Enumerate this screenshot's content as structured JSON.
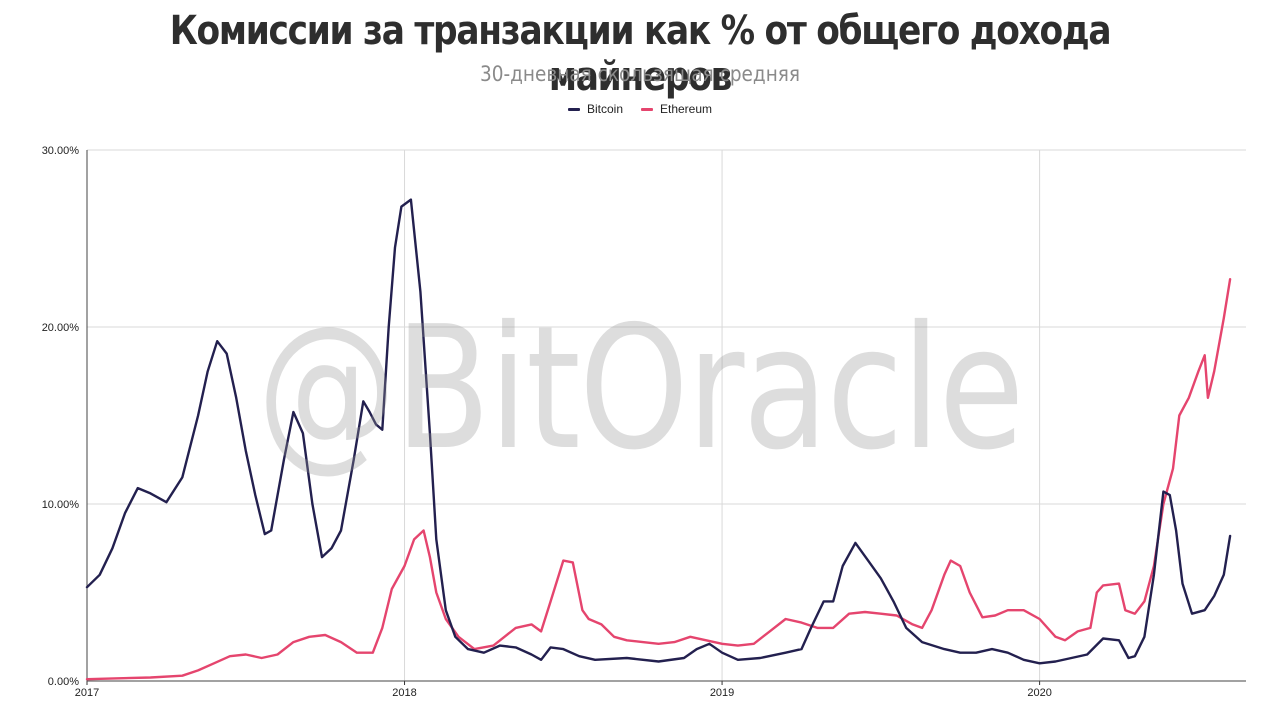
{
  "chart_data": {
    "type": "line",
    "title": "Комиссии за транзакции как % от общего дохода майнеров",
    "subtitle": "30-дневная скользящая средняя",
    "watermark": "@BitOracle",
    "xlabel": "",
    "ylabel": "",
    "x_ticks": [
      "2017",
      "2018",
      "2019",
      "2020"
    ],
    "y_ticks": [
      "0.00%",
      "10.00%",
      "20.00%",
      "30.00%"
    ],
    "xlim": [
      2017.0,
      2020.65
    ],
    "ylim": [
      0,
      30
    ],
    "grid": true,
    "legend_position": "top-center",
    "series": [
      {
        "name": "Bitcoin",
        "color": "#23204f",
        "points": [
          [
            2017.0,
            5.3
          ],
          [
            2017.04,
            6.0
          ],
          [
            2017.08,
            7.5
          ],
          [
            2017.12,
            9.5
          ],
          [
            2017.16,
            10.9
          ],
          [
            2017.2,
            10.6
          ],
          [
            2017.25,
            10.1
          ],
          [
            2017.3,
            11.5
          ],
          [
            2017.35,
            15.0
          ],
          [
            2017.38,
            17.5
          ],
          [
            2017.41,
            19.2
          ],
          [
            2017.44,
            18.5
          ],
          [
            2017.47,
            16.0
          ],
          [
            2017.5,
            13.0
          ],
          [
            2017.53,
            10.5
          ],
          [
            2017.56,
            8.3
          ],
          [
            2017.58,
            8.5
          ],
          [
            2017.62,
            12.5
          ],
          [
            2017.65,
            15.2
          ],
          [
            2017.68,
            14.0
          ],
          [
            2017.71,
            10.0
          ],
          [
            2017.74,
            7.0
          ],
          [
            2017.77,
            7.5
          ],
          [
            2017.8,
            8.5
          ],
          [
            2017.84,
            12.5
          ],
          [
            2017.87,
            15.8
          ],
          [
            2017.89,
            15.2
          ],
          [
            2017.91,
            14.5
          ],
          [
            2017.93,
            14.2
          ],
          [
            2017.95,
            20.0
          ],
          [
            2017.97,
            24.5
          ],
          [
            2017.99,
            26.8
          ],
          [
            2018.02,
            27.2
          ],
          [
            2018.05,
            22.0
          ],
          [
            2018.08,
            14.0
          ],
          [
            2018.1,
            8.0
          ],
          [
            2018.13,
            4.0
          ],
          [
            2018.16,
            2.5
          ],
          [
            2018.2,
            1.8
          ],
          [
            2018.25,
            1.6
          ],
          [
            2018.3,
            2.0
          ],
          [
            2018.35,
            1.9
          ],
          [
            2018.4,
            1.5
          ],
          [
            2018.43,
            1.2
          ],
          [
            2018.46,
            1.9
          ],
          [
            2018.5,
            1.8
          ],
          [
            2018.55,
            1.4
          ],
          [
            2018.6,
            1.2
          ],
          [
            2018.7,
            1.3
          ],
          [
            2018.8,
            1.1
          ],
          [
            2018.88,
            1.3
          ],
          [
            2018.92,
            1.8
          ],
          [
            2018.96,
            2.1
          ],
          [
            2019.0,
            1.6
          ],
          [
            2019.05,
            1.2
          ],
          [
            2019.12,
            1.3
          ],
          [
            2019.2,
            1.6
          ],
          [
            2019.25,
            1.8
          ],
          [
            2019.28,
            3.0
          ],
          [
            2019.32,
            4.5
          ],
          [
            2019.35,
            4.5
          ],
          [
            2019.38,
            6.5
          ],
          [
            2019.42,
            7.8
          ],
          [
            2019.46,
            6.8
          ],
          [
            2019.5,
            5.8
          ],
          [
            2019.54,
            4.5
          ],
          [
            2019.58,
            3.0
          ],
          [
            2019.63,
            2.2
          ],
          [
            2019.7,
            1.8
          ],
          [
            2019.75,
            1.6
          ],
          [
            2019.8,
            1.6
          ],
          [
            2019.85,
            1.8
          ],
          [
            2019.9,
            1.6
          ],
          [
            2019.95,
            1.2
          ],
          [
            2020.0,
            1.0
          ],
          [
            2020.05,
            1.1
          ],
          [
            2020.1,
            1.3
          ],
          [
            2020.15,
            1.5
          ],
          [
            2020.2,
            2.4
          ],
          [
            2020.25,
            2.3
          ],
          [
            2020.28,
            1.3
          ],
          [
            2020.3,
            1.4
          ],
          [
            2020.33,
            2.5
          ],
          [
            2020.36,
            6.0
          ],
          [
            2020.39,
            10.7
          ],
          [
            2020.41,
            10.5
          ],
          [
            2020.43,
            8.5
          ],
          [
            2020.45,
            5.5
          ],
          [
            2020.48,
            3.8
          ],
          [
            2020.52,
            4.0
          ],
          [
            2020.55,
            4.8
          ],
          [
            2020.58,
            6.0
          ],
          [
            2020.6,
            8.2
          ]
        ]
      },
      {
        "name": "Ethereum",
        "color": "#e5456e",
        "points": [
          [
            2017.0,
            0.1
          ],
          [
            2017.1,
            0.15
          ],
          [
            2017.2,
            0.2
          ],
          [
            2017.3,
            0.3
          ],
          [
            2017.35,
            0.6
          ],
          [
            2017.4,
            1.0
          ],
          [
            2017.45,
            1.4
          ],
          [
            2017.5,
            1.5
          ],
          [
            2017.55,
            1.3
          ],
          [
            2017.6,
            1.5
          ],
          [
            2017.65,
            2.2
          ],
          [
            2017.7,
            2.5
          ],
          [
            2017.75,
            2.6
          ],
          [
            2017.8,
            2.2
          ],
          [
            2017.85,
            1.6
          ],
          [
            2017.9,
            1.6
          ],
          [
            2017.93,
            3.0
          ],
          [
            2017.96,
            5.2
          ],
          [
            2018.0,
            6.5
          ],
          [
            2018.03,
            8.0
          ],
          [
            2018.06,
            8.5
          ],
          [
            2018.08,
            7.0
          ],
          [
            2018.1,
            5.0
          ],
          [
            2018.13,
            3.5
          ],
          [
            2018.17,
            2.5
          ],
          [
            2018.22,
            1.8
          ],
          [
            2018.28,
            2.0
          ],
          [
            2018.35,
            3.0
          ],
          [
            2018.4,
            3.2
          ],
          [
            2018.43,
            2.8
          ],
          [
            2018.46,
            4.5
          ],
          [
            2018.5,
            6.8
          ],
          [
            2018.53,
            6.7
          ],
          [
            2018.56,
            4.0
          ],
          [
            2018.58,
            3.5
          ],
          [
            2018.62,
            3.2
          ],
          [
            2018.66,
            2.5
          ],
          [
            2018.7,
            2.3
          ],
          [
            2018.75,
            2.2
          ],
          [
            2018.8,
            2.1
          ],
          [
            2018.85,
            2.2
          ],
          [
            2018.9,
            2.5
          ],
          [
            2018.95,
            2.3
          ],
          [
            2019.0,
            2.1
          ],
          [
            2019.05,
            2.0
          ],
          [
            2019.1,
            2.1
          ],
          [
            2019.15,
            2.8
          ],
          [
            2019.2,
            3.5
          ],
          [
            2019.25,
            3.3
          ],
          [
            2019.3,
            3.0
          ],
          [
            2019.35,
            3.0
          ],
          [
            2019.4,
            3.8
          ],
          [
            2019.45,
            3.9
          ],
          [
            2019.5,
            3.8
          ],
          [
            2019.55,
            3.7
          ],
          [
            2019.6,
            3.2
          ],
          [
            2019.63,
            3.0
          ],
          [
            2019.66,
            4.0
          ],
          [
            2019.7,
            6.0
          ],
          [
            2019.72,
            6.8
          ],
          [
            2019.75,
            6.5
          ],
          [
            2019.78,
            5.0
          ],
          [
            2019.82,
            3.6
          ],
          [
            2019.86,
            3.7
          ],
          [
            2019.9,
            4.0
          ],
          [
            2019.95,
            4.0
          ],
          [
            2020.0,
            3.5
          ],
          [
            2020.05,
            2.5
          ],
          [
            2020.08,
            2.3
          ],
          [
            2020.12,
            2.8
          ],
          [
            2020.16,
            3.0
          ],
          [
            2020.18,
            5.0
          ],
          [
            2020.2,
            5.4
          ],
          [
            2020.25,
            5.5
          ],
          [
            2020.27,
            4.0
          ],
          [
            2020.3,
            3.8
          ],
          [
            2020.33,
            4.5
          ],
          [
            2020.36,
            6.5
          ],
          [
            2020.39,
            10.0
          ],
          [
            2020.42,
            12.0
          ],
          [
            2020.44,
            15.0
          ],
          [
            2020.47,
            16.0
          ],
          [
            2020.5,
            17.5
          ],
          [
            2020.52,
            18.4
          ],
          [
            2020.53,
            16.0
          ],
          [
            2020.55,
            17.5
          ],
          [
            2020.58,
            20.5
          ],
          [
            2020.6,
            22.7
          ]
        ]
      }
    ]
  }
}
